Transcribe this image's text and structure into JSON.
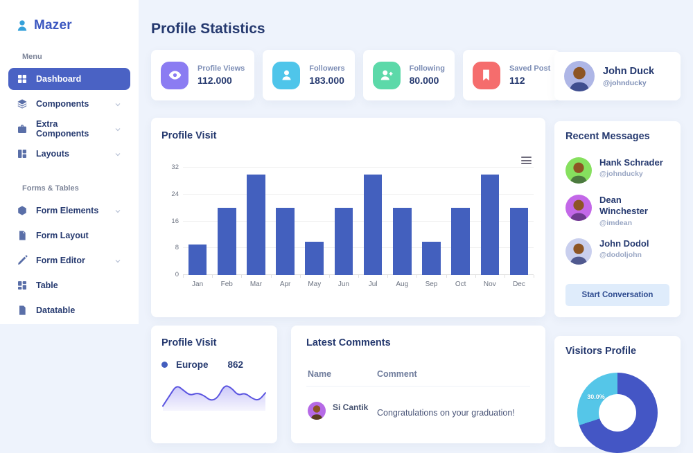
{
  "colors": {
    "primary": "#435ebe",
    "bar": "#4360be",
    "page_bg": "#eef3fc",
    "navy_text": "#25396f",
    "muted_text": "#7c8db5"
  },
  "sidebar": {
    "logo_text": "Mazer",
    "menu_label": "Menu",
    "forms_label": "Forms & Tables",
    "items": [
      {
        "label": "Dashboard"
      },
      {
        "label": "Components"
      },
      {
        "label": "Extra Components"
      },
      {
        "label": "Layouts"
      },
      {
        "label": "Form Elements"
      },
      {
        "label": "Form Layout"
      },
      {
        "label": "Form Editor"
      },
      {
        "label": "Table"
      },
      {
        "label": "Datatable"
      }
    ]
  },
  "header": {
    "title": "Profile Statistics"
  },
  "stats": {
    "items": [
      {
        "label": "Profile Views",
        "value": "112.000",
        "icon": "eye-icon",
        "color": "#8b7cf2"
      },
      {
        "label": "Followers",
        "value": "183.000",
        "icon": "user-icon",
        "color": "#4fc5ea"
      },
      {
        "label": "Following",
        "value": "80.000",
        "icon": "user-plus-icon",
        "color": "#5cd9a9"
      },
      {
        "label": "Saved Post",
        "value": "112",
        "icon": "bookmark-icon",
        "color": "#f56d6d"
      }
    ]
  },
  "profile_card": {
    "name": "John Duck",
    "handle": "@johnducky",
    "avatar_color": "#aeb6e6"
  },
  "recent_messages": {
    "title": "Recent Messages",
    "messages": [
      {
        "name": "Hank Schrader",
        "handle": "@johnducky",
        "avatar_color": "#86e05e"
      },
      {
        "name": "Dean Winchester",
        "handle": "@imdean",
        "avatar_color": "#c368e8"
      },
      {
        "name": "John Dodol",
        "handle": "@dodoljohn",
        "avatar_color": "#c9cfee"
      }
    ],
    "button_label": "Start Conversation"
  },
  "latest_comments": {
    "title": "Latest Comments",
    "columns": [
      "Name",
      "Comment"
    ],
    "rows": [
      {
        "name": "Si Cantik",
        "comment": "Congratulations on your graduation!",
        "avatar_color": "#b66ae6"
      }
    ]
  },
  "chart_data": [
    {
      "id": "profile_visit_bar",
      "type": "bar",
      "title": "Profile Visit",
      "categories": [
        "Jan",
        "Feb",
        "Mar",
        "Apr",
        "May",
        "Jun",
        "Jul",
        "Aug",
        "Sep",
        "Oct",
        "Nov",
        "Dec"
      ],
      "values": [
        9,
        20,
        30,
        20,
        10,
        20,
        30,
        20,
        10,
        20,
        30,
        20
      ],
      "xlabel": "",
      "ylabel": "",
      "ylim": [
        0,
        32
      ],
      "yticks": [
        0,
        8,
        16,
        24,
        32
      ],
      "grid": true,
      "legend_position": "none",
      "color": "#4360be"
    },
    {
      "id": "europe_sparkline",
      "type": "area",
      "title": "Profile Visit",
      "series": [
        {
          "name": "Europe",
          "value_label": "862"
        }
      ],
      "values": [
        1,
        5,
        9,
        7,
        5,
        6,
        5,
        3,
        4,
        9,
        8,
        5,
        6,
        4,
        3,
        6
      ],
      "ylim": [
        0,
        10
      ],
      "grid": false,
      "color": "#5a54e0",
      "fill_color": "#8d86f0"
    },
    {
      "id": "visitors_donut",
      "type": "pie",
      "title": "Visitors Profile",
      "slices": [
        {
          "value": 70,
          "color": "#4456c5",
          "label": ""
        },
        {
          "value": 30,
          "color": "#55c6e8",
          "label": "30.0%"
        }
      ]
    }
  ]
}
